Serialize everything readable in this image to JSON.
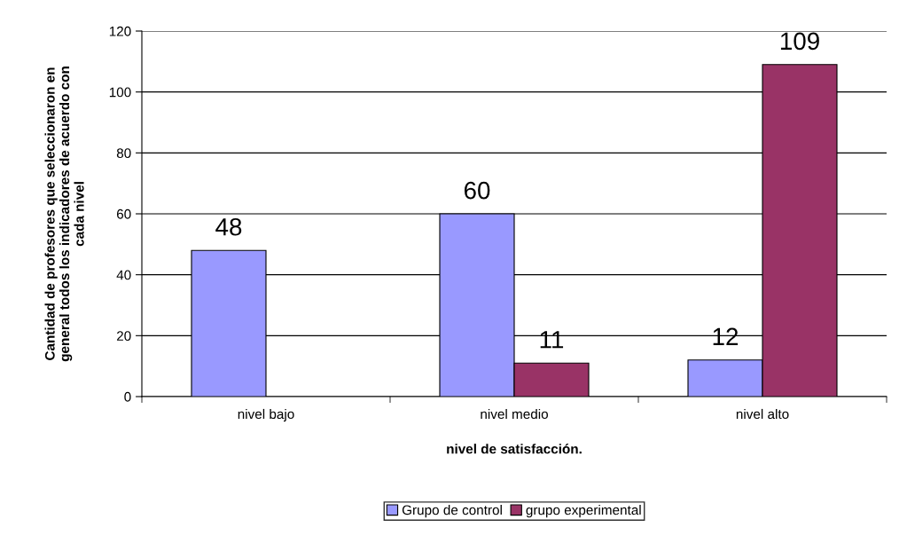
{
  "chart_data": {
    "type": "bar",
    "xlabel": "nivel de satisfacción.",
    "ylabel": "Cantidad de profesores que seleccionaron en\ngeneral todos los indicadores de acuerdo con\ncada nivel",
    "categories": [
      "nivel bajo",
      "nivel medio",
      "nivel alto"
    ],
    "series": [
      {
        "name": "Grupo de control",
        "color": "#9999ff",
        "values": [
          48,
          60,
          12
        ]
      },
      {
        "name": "grupo experimental",
        "color": "#993366",
        "values": [
          null,
          11,
          109
        ]
      }
    ],
    "ylim": [
      0,
      120
    ],
    "yticks": [
      0,
      20,
      40,
      60,
      80,
      100,
      120
    ],
    "grid": "y",
    "legend": "bottom",
    "data_labels": true
  }
}
